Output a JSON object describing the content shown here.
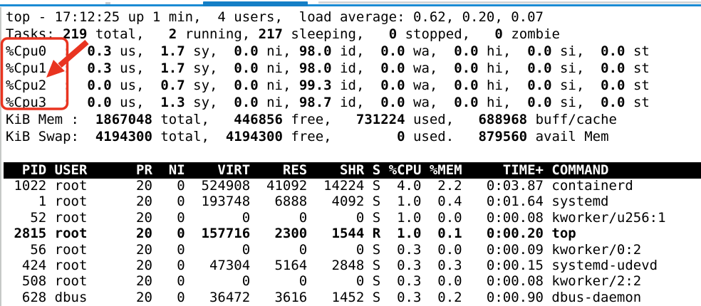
{
  "colors": {
    "background": "#ffffff",
    "text": "#000000",
    "table_header_bg": "#000000",
    "table_header_fg": "#ffffff",
    "annotation_red": "#e93420",
    "tab_blue": "#1b8bd4",
    "tab_blue_dark": "#157fc6",
    "tab_gray": "#d3d6d8"
  },
  "annotation": {
    "shape": "box-and-arrow",
    "color": "#e93420",
    "highlights": "%Cpu0 %Cpu1 %Cpu2 %Cpu3"
  },
  "summary": {
    "lines": [
      {
        "segments": [
          {
            "t": "top - 17:12:25 up 1 min,  4 users,  load average: 0.62, 0.20, 0.07",
            "b": false
          }
        ]
      },
      {
        "segments": [
          {
            "t": "Tasks: ",
            "b": false
          },
          {
            "t": "219",
            "b": true
          },
          {
            "t": " total,   ",
            "b": false
          },
          {
            "t": "2",
            "b": true
          },
          {
            "t": " running, ",
            "b": false
          },
          {
            "t": "217",
            "b": true
          },
          {
            "t": " sleeping,   ",
            "b": false
          },
          {
            "t": "0",
            "b": true
          },
          {
            "t": " stopped,   ",
            "b": false
          },
          {
            "t": "0",
            "b": true
          },
          {
            "t": " zombie",
            "b": false
          }
        ]
      },
      {
        "segments": [
          {
            "t": "%Cpu0  : ",
            "b": false
          },
          {
            "t": " 0.3",
            "b": true
          },
          {
            "t": " us, ",
            "b": false
          },
          {
            "t": " 1.7",
            "b": true
          },
          {
            "t": " sy, ",
            "b": false
          },
          {
            "t": " 0.0",
            "b": true
          },
          {
            "t": " ni, ",
            "b": false
          },
          {
            "t": "98.0",
            "b": true
          },
          {
            "t": " id, ",
            "b": false
          },
          {
            "t": " 0.0",
            "b": true
          },
          {
            "t": " wa, ",
            "b": false
          },
          {
            "t": " 0.0",
            "b": true
          },
          {
            "t": " hi, ",
            "b": false
          },
          {
            "t": " 0.0",
            "b": true
          },
          {
            "t": " si, ",
            "b": false
          },
          {
            "t": " 0.0",
            "b": true
          },
          {
            "t": " st",
            "b": false
          }
        ]
      },
      {
        "segments": [
          {
            "t": "%Cpu1  : ",
            "b": false
          },
          {
            "t": " 0.3",
            "b": true
          },
          {
            "t": " us, ",
            "b": false
          },
          {
            "t": " 1.7",
            "b": true
          },
          {
            "t": " sy, ",
            "b": false
          },
          {
            "t": " 0.0",
            "b": true
          },
          {
            "t": " ni, ",
            "b": false
          },
          {
            "t": "98.0",
            "b": true
          },
          {
            "t": " id, ",
            "b": false
          },
          {
            "t": " 0.0",
            "b": true
          },
          {
            "t": " wa, ",
            "b": false
          },
          {
            "t": " 0.0",
            "b": true
          },
          {
            "t": " hi, ",
            "b": false
          },
          {
            "t": " 0.0",
            "b": true
          },
          {
            "t": " si, ",
            "b": false
          },
          {
            "t": " 0.0",
            "b": true
          },
          {
            "t": " st",
            "b": false
          }
        ]
      },
      {
        "segments": [
          {
            "t": "%Cpu2  : ",
            "b": false
          },
          {
            "t": " 0.0",
            "b": true
          },
          {
            "t": " us, ",
            "b": false
          },
          {
            "t": " 0.7",
            "b": true
          },
          {
            "t": " sy, ",
            "b": false
          },
          {
            "t": " 0.0",
            "b": true
          },
          {
            "t": " ni, ",
            "b": false
          },
          {
            "t": "99.3",
            "b": true
          },
          {
            "t": " id, ",
            "b": false
          },
          {
            "t": " 0.0",
            "b": true
          },
          {
            "t": " wa, ",
            "b": false
          },
          {
            "t": " 0.0",
            "b": true
          },
          {
            "t": " hi, ",
            "b": false
          },
          {
            "t": " 0.0",
            "b": true
          },
          {
            "t": " si, ",
            "b": false
          },
          {
            "t": " 0.0",
            "b": true
          },
          {
            "t": " st",
            "b": false
          }
        ]
      },
      {
        "segments": [
          {
            "t": "%Cpu3  : ",
            "b": false
          },
          {
            "t": " 0.0",
            "b": true
          },
          {
            "t": " us, ",
            "b": false
          },
          {
            "t": " 1.3",
            "b": true
          },
          {
            "t": " sy, ",
            "b": false
          },
          {
            "t": " 0.0",
            "b": true
          },
          {
            "t": " ni, ",
            "b": false
          },
          {
            "t": "98.7",
            "b": true
          },
          {
            "t": " id, ",
            "b": false
          },
          {
            "t": " 0.0",
            "b": true
          },
          {
            "t": " wa, ",
            "b": false
          },
          {
            "t": " 0.0",
            "b": true
          },
          {
            "t": " hi, ",
            "b": false
          },
          {
            "t": " 0.0",
            "b": true
          },
          {
            "t": " si, ",
            "b": false
          },
          {
            "t": " 0.0",
            "b": true
          },
          {
            "t": " st",
            "b": false
          }
        ]
      },
      {
        "segments": [
          {
            "t": "KiB Mem :",
            "b": false
          },
          {
            "t": "  1867048",
            "b": true
          },
          {
            "t": " total,",
            "b": false
          },
          {
            "t": "   446856",
            "b": true
          },
          {
            "t": " free,",
            "b": false
          },
          {
            "t": "   731224",
            "b": true
          },
          {
            "t": " used,",
            "b": false
          },
          {
            "t": "   688968",
            "b": true
          },
          {
            "t": " buff/cache",
            "b": false
          }
        ]
      },
      {
        "segments": [
          {
            "t": "KiB Swap:",
            "b": false
          },
          {
            "t": "  4194300",
            "b": true
          },
          {
            "t": " total,",
            "b": false
          },
          {
            "t": "  4194300",
            "b": true
          },
          {
            "t": " free,",
            "b": false
          },
          {
            "t": "        0",
            "b": true
          },
          {
            "t": " used.",
            "b": false
          },
          {
            "t": "   879560",
            "b": true
          },
          {
            "t": " avail Mem",
            "b": false
          }
        ]
      }
    ]
  },
  "table": {
    "header": "  PID USER      PR  NI    VIRT    RES    SHR S %CPU %MEM     TIME+ COMMAND",
    "rows": [
      {
        "text": " 1022 root      20   0  524908  41092  14224 S  4.0  2.2   0:03.87 containerd",
        "bold": false
      },
      {
        "text": "    1 root      20   0  193748   6888   4092 S  1.0  0.4   0:01.64 systemd",
        "bold": false
      },
      {
        "text": "   52 root      20   0       0      0      0 S  1.0  0.0   0:00.08 kworker/u256:1",
        "bold": false
      },
      {
        "text": " 2815 root      20   0  157716   2300   1544 R  1.0  0.1   0:00.20 top",
        "bold": true
      },
      {
        "text": "   56 root      20   0       0      0      0 S  0.3  0.0   0:00.09 kworker/0:2",
        "bold": false
      },
      {
        "text": "  424 root      20   0   47304   5164   2848 S  0.3  0.3   0:00.15 systemd-udevd",
        "bold": false
      },
      {
        "text": "  508 root      20   0       0      0      0 S  0.3  0.0   0:00.08 kworker/2:2",
        "bold": false
      },
      {
        "text": "  628 dbus      20   0   36472   3616   1452 S  0.3  0.2   0:00.90 dbus-daemon",
        "bold": false
      }
    ]
  }
}
